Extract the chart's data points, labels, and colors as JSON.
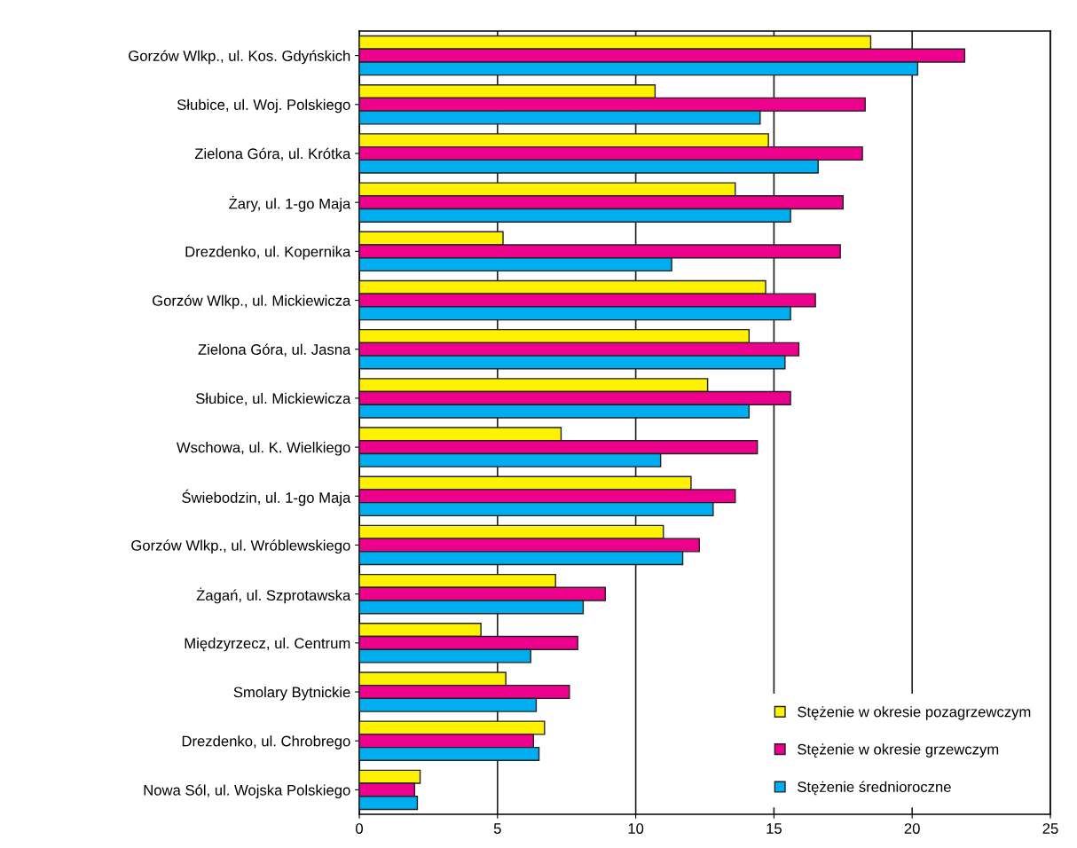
{
  "chart_data": {
    "type": "bar",
    "orientation": "horizontal",
    "categories": [
      "Gorzów Wlkp., ul. Kos. Gdyńskich",
      "Słubice, ul. Woj. Polskiego",
      "Zielona Góra, ul. Krótka",
      "Żary, ul. 1-go Maja",
      "Drezdenko, ul. Kopernika",
      "Gorzów Wlkp., ul. Mickiewicza",
      "Zielona Góra, ul. Jasna",
      "Słubice, ul. Mickiewicza",
      "Wschowa, ul. K. Wielkiego",
      "Świebodzin, ul. 1-go Maja",
      "Gorzów Wlkp., ul. Wróblewskiego",
      "Żagań, ul. Szprotawska",
      "Międzyrzecz, ul. Centrum",
      "Smolary Bytnickie",
      "Drezdenko, ul. Chrobrego",
      "Nowa Sól, ul. Wojska Polskiego"
    ],
    "series": [
      {
        "name": "Stężenie w okresie pozagrzewczym",
        "color": "#fff200",
        "values": [
          18.5,
          10.7,
          14.8,
          13.6,
          5.2,
          14.7,
          14.1,
          12.6,
          7.3,
          12.0,
          11.0,
          7.1,
          4.4,
          5.3,
          6.7,
          2.2
        ]
      },
      {
        "name": "Stężenie w okresie grzewczym",
        "color": "#ec008c",
        "values": [
          21.9,
          18.3,
          18.2,
          17.5,
          17.4,
          16.5,
          15.9,
          15.6,
          14.4,
          13.6,
          12.3,
          8.9,
          7.9,
          7.6,
          6.3,
          2.0
        ]
      },
      {
        "name": "Stężenie średnioroczne",
        "color": "#00aeef",
        "values": [
          20.2,
          14.5,
          16.6,
          15.6,
          11.3,
          15.6,
          15.4,
          14.1,
          10.9,
          12.8,
          11.7,
          8.1,
          6.2,
          6.4,
          6.5,
          2.1
        ]
      }
    ],
    "xlim": [
      0,
      25
    ],
    "xticks": [
      0,
      5,
      10,
      15,
      20,
      25
    ],
    "grid": "x",
    "legend": "bottom right"
  }
}
